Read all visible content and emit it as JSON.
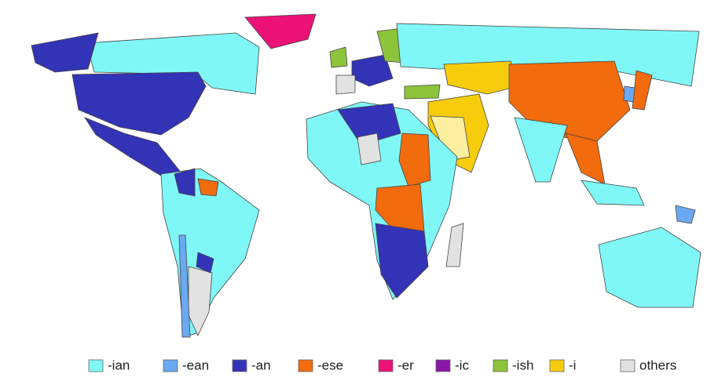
{
  "legend": [
    {
      "label": "-ian",
      "color": "#80f7f7"
    },
    {
      "label": "-ean",
      "color": "#6ba9f2"
    },
    {
      "label": "-an",
      "color": "#3333b8"
    },
    {
      "label": "-ese",
      "color": "#f26b0d"
    },
    {
      "label": "-er",
      "color": "#ec1277"
    },
    {
      "label": "-ic",
      "color": "#8a17a8"
    },
    {
      "label": "-ish",
      "color": "#8cc43a"
    },
    {
      "label": "-i",
      "color": "#f7cc0d"
    },
    {
      "label": "others",
      "color": "#e2e2e2"
    }
  ]
}
